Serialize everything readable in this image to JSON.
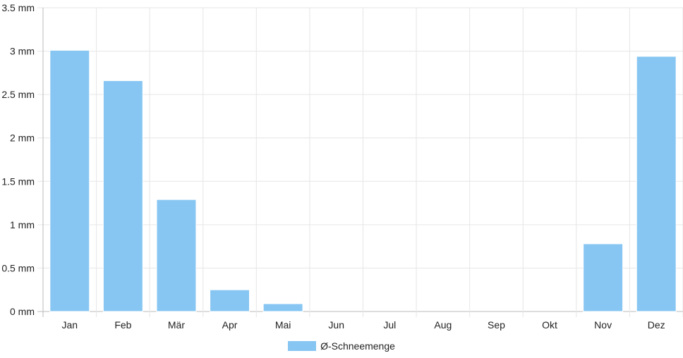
{
  "chart_data": {
    "type": "bar",
    "categories": [
      "Jan",
      "Feb",
      "Mär",
      "Apr",
      "Mai",
      "Jun",
      "Jul",
      "Aug",
      "Sep",
      "Okt",
      "Nov",
      "Dez"
    ],
    "series": [
      {
        "name": "Ø-Schneemenge",
        "values": [
          3.01,
          2.66,
          1.29,
          0.25,
          0.09,
          0,
          0,
          0,
          0,
          0,
          0.78,
          2.94
        ]
      }
    ],
    "yticks": [
      "0 mm",
      "0.5 mm",
      "1 mm",
      "1.5 mm",
      "2 mm",
      "2.5 mm",
      "3 mm",
      "3.5 mm"
    ],
    "ylim": [
      0,
      3.5
    ],
    "grid": true,
    "legend_position": "bottom",
    "colors": {
      "bar": "#87c6f2",
      "bar_border": "#ffffff",
      "grid": "#e6e6e6",
      "axis": "#bbbbbb"
    }
  }
}
